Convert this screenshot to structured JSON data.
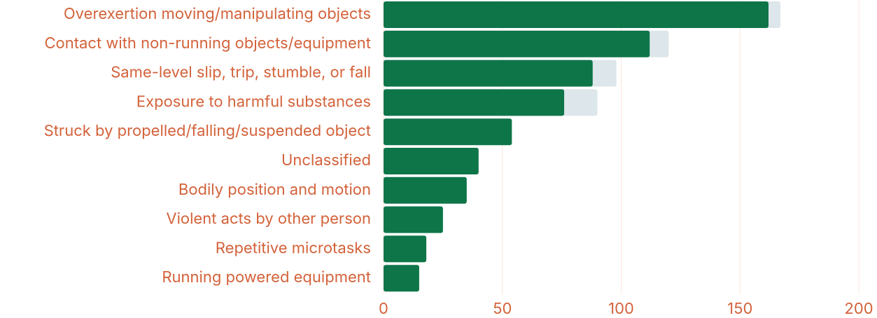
{
  "chart_data": {
    "type": "stacked-bar",
    "orientation": "horizontal",
    "categories": [
      "Overexertion moving/manipulating objects",
      "Contact with non-running objects/equipment",
      "Same-level slip, trip, stumble, or fall",
      "Exposure to harmful substances",
      "Struck by propelled/falling/suspended object",
      "Unclassified",
      "Bodily position and motion",
      "Violent acts by other person",
      "Repetitive microtasks",
      "Running powered equipment"
    ],
    "series": [
      {
        "color": "#0e7549",
        "values": [
          162,
          112,
          88,
          76,
          54,
          40,
          35,
          25,
          18,
          15
        ]
      },
      {
        "color": "#dde6ea",
        "values": [
          5,
          8,
          10,
          14,
          0,
          0,
          0,
          0,
          0,
          0
        ]
      }
    ],
    "xlim": [
      0,
      200
    ],
    "xticks": [
      0,
      50,
      100,
      150,
      200
    ],
    "grid": true
  }
}
